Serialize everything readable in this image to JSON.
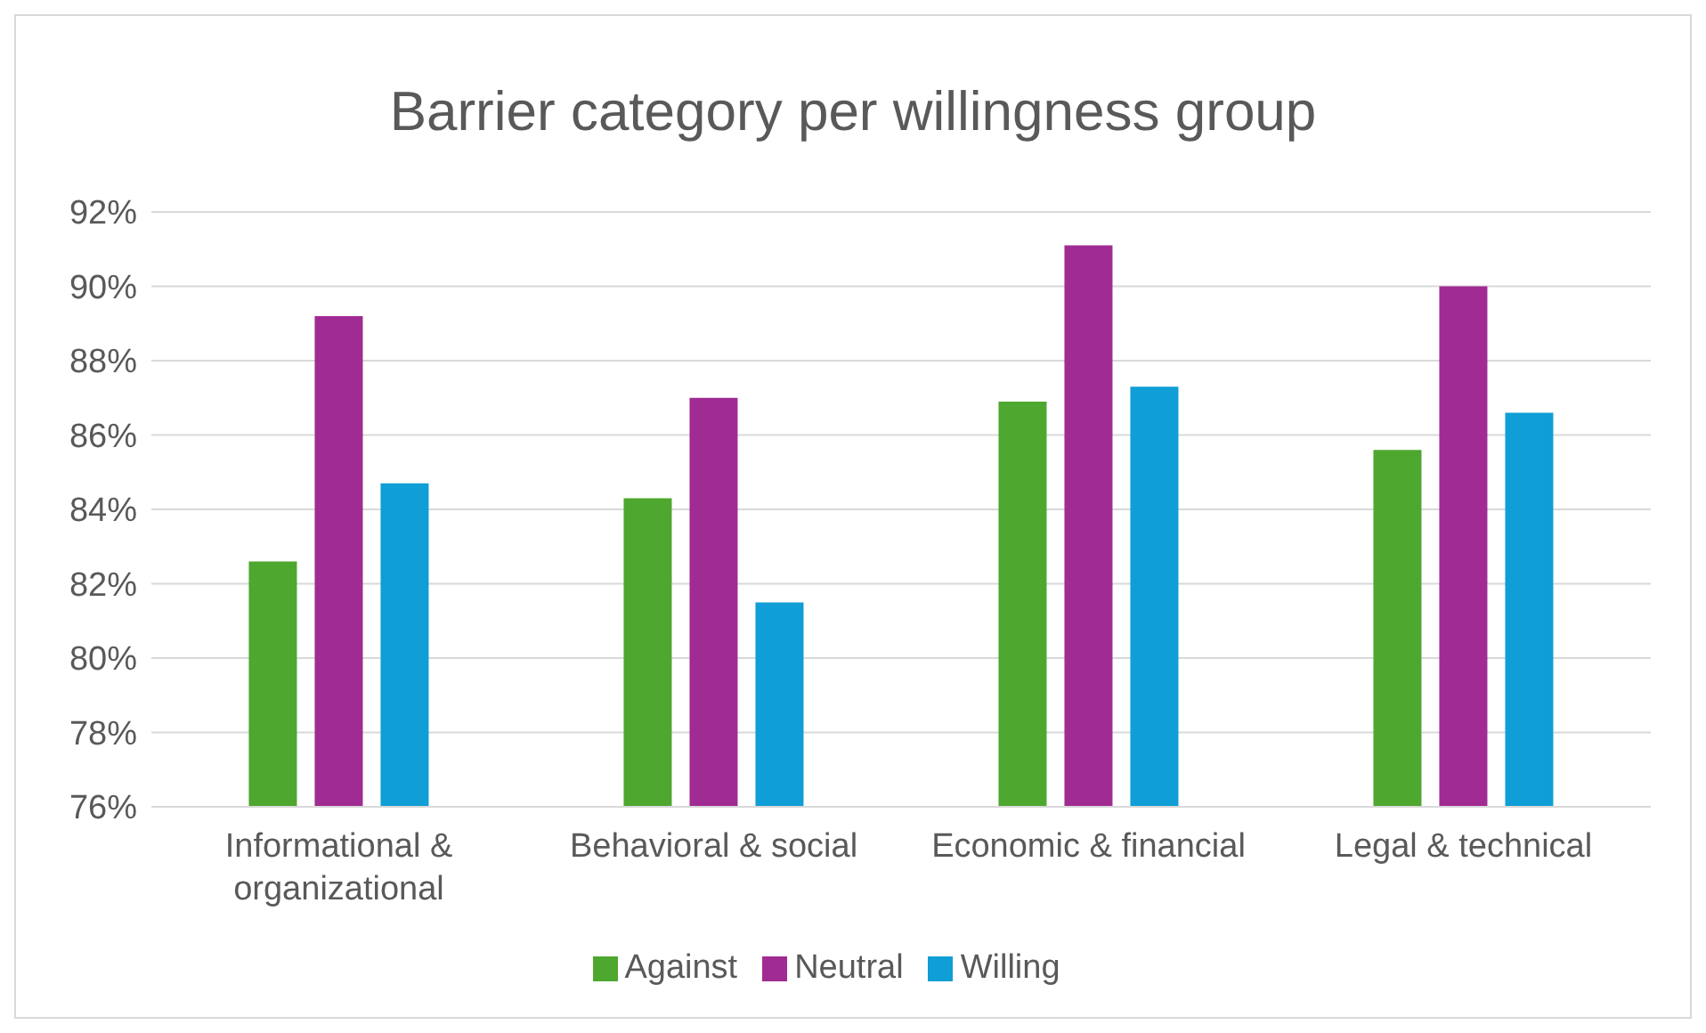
{
  "chart_data": {
    "type": "bar",
    "title": "Barrier category per willingness group",
    "categories": [
      "Informational & organizational",
      "Behavioral & social",
      "Economic & financial",
      "Legal & technical"
    ],
    "series": [
      {
        "name": "Against",
        "color": "#4ea72e",
        "values": [
          82.6,
          84.3,
          86.9,
          85.6
        ]
      },
      {
        "name": "Neutral",
        "color": "#a02b93",
        "values": [
          89.2,
          87.0,
          91.1,
          90.0
        ]
      },
      {
        "name": "Willing",
        "color": "#0f9ed5",
        "values": [
          84.7,
          81.5,
          87.3,
          86.6
        ]
      }
    ],
    "ylim": [
      76,
      92
    ],
    "yticks": [
      {
        "value": 76,
        "label": "76%"
      },
      {
        "value": 78,
        "label": "78%"
      },
      {
        "value": 80,
        "label": "80%"
      },
      {
        "value": 82,
        "label": "82%"
      },
      {
        "value": 84,
        "label": "84%"
      },
      {
        "value": 86,
        "label": "86%"
      },
      {
        "value": 88,
        "label": "88%"
      },
      {
        "value": 90,
        "label": "90%"
      },
      {
        "value": 92,
        "label": "92%"
      }
    ],
    "grid": "y",
    "legend": "bottom"
  }
}
